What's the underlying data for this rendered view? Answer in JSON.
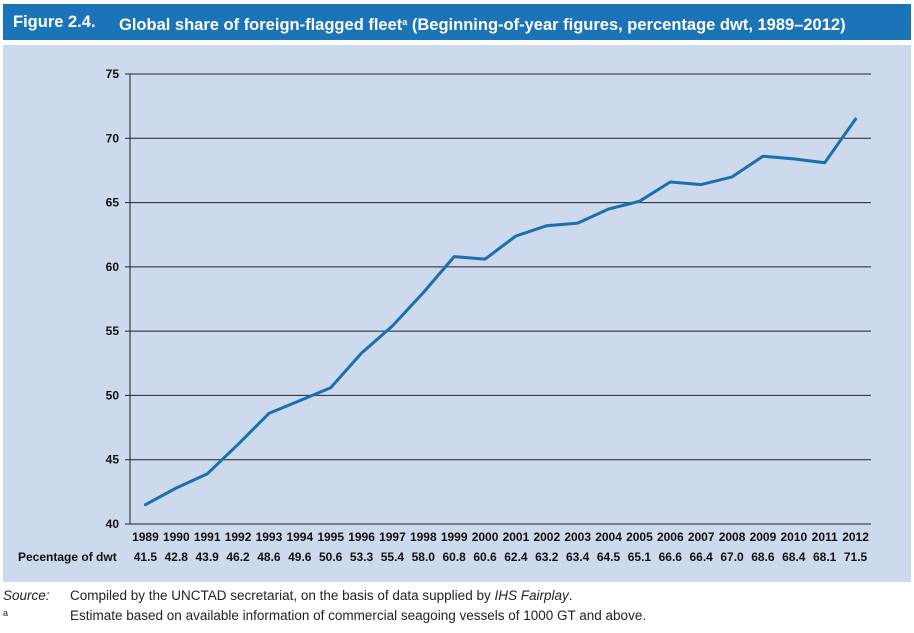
{
  "figure": {
    "number": "Figure 2.4.",
    "title": "Global share of foreign-flagged fleet",
    "title_sup": "a",
    "title_suffix": " (Beginning-of-year figures, percentage dwt, 1989–2012)"
  },
  "chart_data": {
    "type": "line",
    "title": "Global share of foreign-flagged fleet (Beginning-of-year figures, percentage dwt, 1989–2012)",
    "x": [
      "1989",
      "1990",
      "1991",
      "1992",
      "1993",
      "1994",
      "1995",
      "1996",
      "1997",
      "1998",
      "1999",
      "2000",
      "2001",
      "2002",
      "2003",
      "2004",
      "2005",
      "2006",
      "2007",
      "2008",
      "2009",
      "2010",
      "2011",
      "2012"
    ],
    "series": [
      {
        "values": [
          41.5,
          42.8,
          43.9,
          46.2,
          48.6,
          49.6,
          50.6,
          53.3,
          55.4,
          58.0,
          60.8,
          60.6,
          62.4,
          63.2,
          63.4,
          64.5,
          65.1,
          66.6,
          66.4,
          67.0,
          68.6,
          68.4,
          68.1,
          71.5
        ],
        "labels": [
          "41.5",
          "42.8",
          "43.9",
          "46.2",
          "48.6",
          "49.6",
          "50.6",
          "53.3",
          "55.4",
          "58.0",
          "60.8",
          "60.6",
          "62.4",
          "63.2",
          "63.4",
          "64.5",
          "65.1",
          "66.6",
          "66.4",
          "67.0",
          "68.6",
          "68.4",
          "68.1",
          "71.5"
        ]
      }
    ],
    "table_row_label": "Pecentage of dwt",
    "ylim": [
      40,
      75
    ],
    "yticks": [
      "40",
      "45",
      "50",
      "55",
      "60",
      "65",
      "70",
      "75"
    ],
    "grid": true,
    "legend": "none",
    "line_color": "#1b6fae",
    "panel_color": "#cdd9ec"
  },
  "notes": {
    "source_label": "Source:",
    "source_text": "Compiled by the UNCTAD secretariat, on the basis of data supplied by ",
    "source_italic": "IHS Fairplay",
    "source_end": ".",
    "footnote_mark": "a",
    "footnote_text": "Estimate based on available information of commercial seagoing vessels of 1000 GT and above."
  }
}
